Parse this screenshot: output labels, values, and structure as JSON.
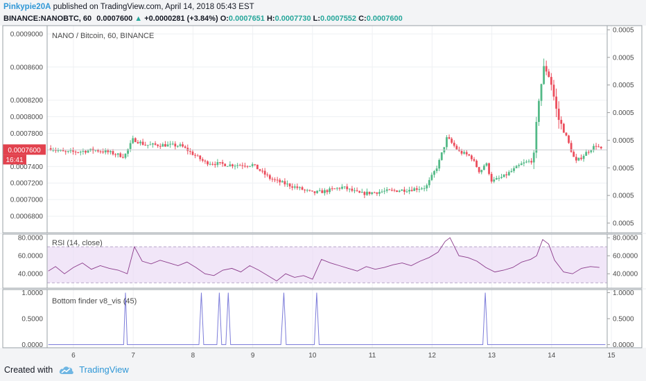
{
  "header": {
    "author": "Pinkypie20A",
    "published_text": "published on TradingView.com, April 14, 2018 05:43 EST",
    "symbol_line": "BINANCE:NANOBTC, 60",
    "last_price": "0.0007600",
    "change_arrow": "▲",
    "change": "+0.0000281 (+3.84%)",
    "o_label": "O:",
    "o_value": "0.0007651",
    "h_label": "H:",
    "h_value": "0.0007730",
    "l_label": "L:",
    "l_value": "0.0007552",
    "c_label": "C:",
    "c_value": "0.0007600"
  },
  "footer": {
    "created_with": "Created with",
    "brand": "TradingView"
  },
  "colors": {
    "up": "#53b987",
    "down": "#eb4d5c",
    "rsi_line": "#8a3a8a",
    "rsi_band": "#e9d9f5",
    "finder_line": "#7b7bd9",
    "price_tag": "#e2424e"
  },
  "chart_data": [
    {
      "type": "candlestick",
      "title": "NANO / Bitcoin, 60, BINANCE",
      "xlim": [
        5.56,
        14.93
      ],
      "x_ticks": [
        "6",
        "7",
        "8",
        "9",
        "10",
        "11",
        "12",
        "13",
        "14",
        "15"
      ],
      "ylim": [
        0.00066,
        0.00091
      ],
      "y_ticks_left": [
        "0.0009000",
        "0.0008600",
        "0.0008200",
        "0.0008000",
        "0.0007800",
        "0.0007400",
        "0.0007200",
        "0.0007000",
        "0.0006800"
      ],
      "y_ticks_right": [
        "0.0005",
        "0.0005",
        "0.0005",
        "0.0005",
        "0.0005",
        "0.0005",
        "0.0005",
        "0.0005"
      ],
      "last_price_label": "0.0007600",
      "countdown_label": "16:41",
      "close_path": [
        [
          5.62,
          0.000762
        ],
        [
          5.85,
          0.000757
        ],
        [
          6.1,
          0.000758
        ],
        [
          6.35,
          0.00076
        ],
        [
          6.6,
          0.000757
        ],
        [
          6.85,
          0.000752
        ],
        [
          7.0,
          0.000773
        ],
        [
          7.2,
          0.000766
        ],
        [
          7.5,
          0.000766
        ],
        [
          7.8,
          0.000765
        ],
        [
          8.0,
          0.000755
        ],
        [
          8.2,
          0.000745
        ],
        [
          8.6,
          0.000742
        ],
        [
          9.0,
          0.000742
        ],
        [
          9.3,
          0.000725
        ],
        [
          9.5,
          0.00072
        ],
        [
          9.8,
          0.000713
        ],
        [
          10.0,
          0.000708
        ],
        [
          10.2,
          0.00071
        ],
        [
          10.5,
          0.000715
        ],
        [
          10.8,
          0.000707
        ],
        [
          11.2,
          0.00071
        ],
        [
          11.6,
          0.000712
        ],
        [
          11.9,
          0.000715
        ],
        [
          12.1,
          0.000742
        ],
        [
          12.25,
          0.000775
        ],
        [
          12.45,
          0.000758
        ],
        [
          12.65,
          0.000752
        ],
        [
          12.8,
          0.000733
        ],
        [
          12.9,
          0.000745
        ],
        [
          13.0,
          0.000722
        ],
        [
          13.2,
          0.000728
        ],
        [
          13.5,
          0.000743
        ],
        [
          13.7,
          0.000748
        ],
        [
          13.78,
          0.00082
        ],
        [
          13.88,
          0.000862
        ],
        [
          13.98,
          0.000846
        ],
        [
          14.1,
          0.0008
        ],
        [
          14.25,
          0.000775
        ],
        [
          14.4,
          0.000745
        ],
        [
          14.6,
          0.000758
        ],
        [
          14.75,
          0.000766
        ],
        [
          14.83,
          0.00076
        ]
      ]
    },
    {
      "type": "line",
      "title": "RSI (14, close)",
      "ylim": [
        24,
        84
      ],
      "y_ticks": [
        "80.0000",
        "60.0000",
        "40.0000"
      ],
      "band": [
        30,
        70
      ],
      "x": [
        5.58,
        5.7,
        5.85,
        6.0,
        6.15,
        6.3,
        6.45,
        6.6,
        6.75,
        6.9,
        7.02,
        7.15,
        7.3,
        7.45,
        7.6,
        7.75,
        7.9,
        8.05,
        8.2,
        8.35,
        8.5,
        8.65,
        8.8,
        8.95,
        9.1,
        9.25,
        9.4,
        9.55,
        9.7,
        9.85,
        10.0,
        10.15,
        10.3,
        10.45,
        10.6,
        10.75,
        10.9,
        11.05,
        11.2,
        11.35,
        11.5,
        11.65,
        11.8,
        11.95,
        12.1,
        12.22,
        12.3,
        12.45,
        12.6,
        12.75,
        12.9,
        13.05,
        13.2,
        13.35,
        13.5,
        13.65,
        13.75,
        13.85,
        13.95,
        14.05,
        14.2,
        14.35,
        14.5,
        14.65,
        14.8
      ],
      "values": [
        43,
        48,
        40,
        47,
        52,
        45,
        49,
        46,
        44,
        40,
        70,
        54,
        51,
        55,
        52,
        49,
        53,
        47,
        40,
        38,
        44,
        46,
        42,
        49,
        44,
        38,
        32,
        40,
        36,
        38,
        34,
        56,
        52,
        49,
        46,
        43,
        48,
        45,
        47,
        50,
        52,
        49,
        54,
        58,
        64,
        76,
        80,
        60,
        58,
        54,
        47,
        42,
        44,
        47,
        53,
        56,
        60,
        78,
        73,
        55,
        42,
        40,
        46,
        48,
        47
      ]
    },
    {
      "type": "line",
      "title": "Bottom finder v8_vis (45)",
      "ylim": [
        -0.06,
        1.06
      ],
      "y_ticks": [
        "1.0000",
        "0.5000",
        "0.0000"
      ],
      "x": [
        5.58,
        6.84,
        6.87,
        6.9,
        8.1,
        8.14,
        8.18,
        8.4,
        8.44,
        8.48,
        8.55,
        8.59,
        8.63,
        9.47,
        9.52,
        9.56,
        10.03,
        10.07,
        10.11,
        12.85,
        12.89,
        12.93,
        14.9
      ],
      "values": [
        0,
        0,
        1,
        0,
        0,
        1,
        0,
        0,
        1,
        0,
        0,
        1,
        0,
        0,
        1,
        0,
        0,
        1,
        0,
        0,
        1,
        0,
        0
      ]
    }
  ]
}
